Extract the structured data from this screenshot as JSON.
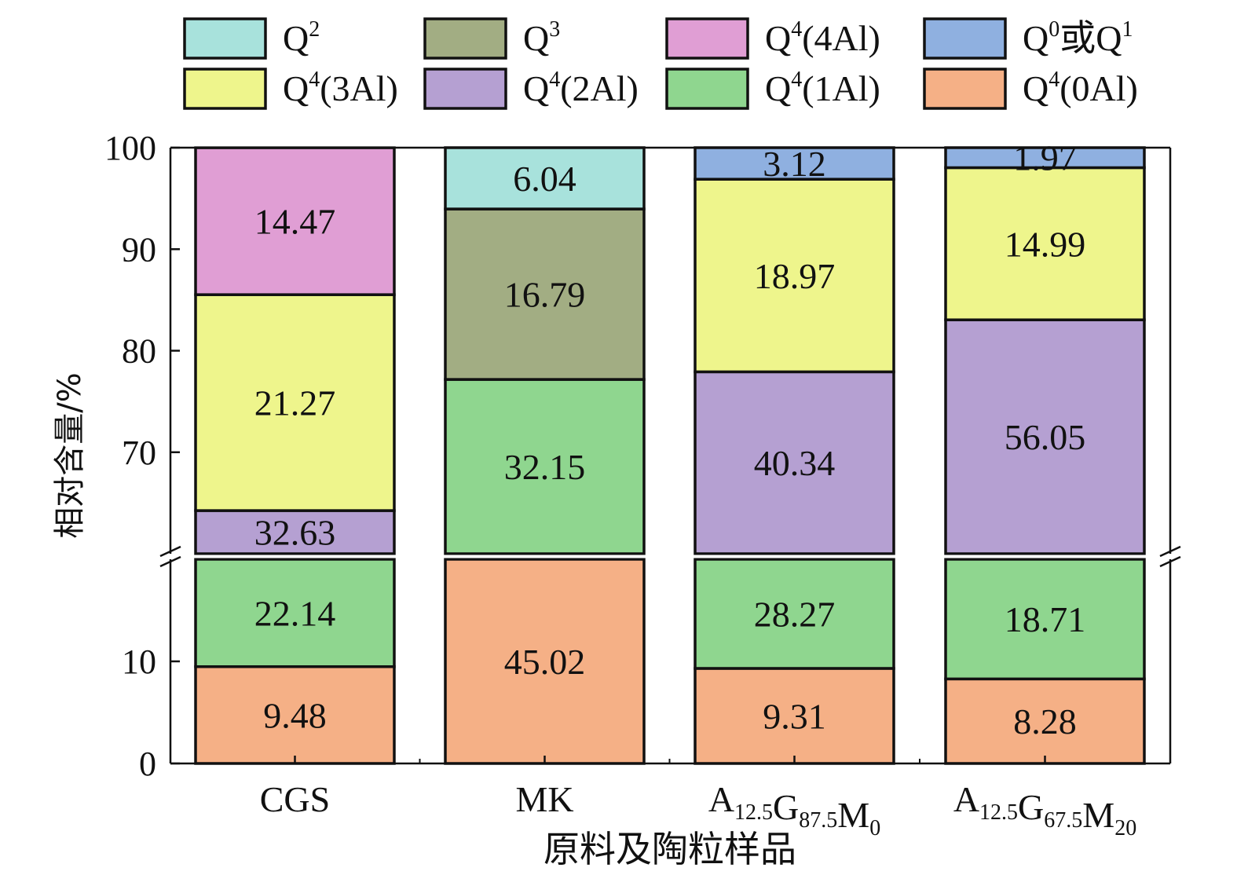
{
  "chart_data": {
    "type": "bar",
    "stacked": true,
    "xlabel": "原料及陶粒样品",
    "ylabel": "相对含量/%",
    "y_break": [
      20,
      60
    ],
    "lower_ylim": [
      0,
      20
    ],
    "upper_ylim": [
      60,
      100
    ],
    "lower_yticks": [
      0,
      10
    ],
    "upper_yticks": [
      70,
      80,
      90,
      100
    ],
    "categories": [
      {
        "base": "CGS",
        "parts": []
      },
      {
        "base": "MK",
        "parts": []
      },
      {
        "base": "",
        "parts": [
          [
            "A",
            "12.5"
          ],
          [
            "G",
            "87.5"
          ],
          [
            "M",
            "0"
          ]
        ]
      },
      {
        "base": "",
        "parts": [
          [
            "A",
            "12.5"
          ],
          [
            "G",
            "67.5"
          ],
          [
            "M",
            "20"
          ]
        ]
      }
    ],
    "series": [
      {
        "key": "q4_0al",
        "main": "Q",
        "sup": "4",
        "tail": "(0Al)",
        "color": "#f5b086",
        "values": [
          9.48,
          45.02,
          9.31,
          8.28
        ]
      },
      {
        "key": "q4_1al",
        "main": "Q",
        "sup": "4",
        "tail": "(1Al)",
        "color": "#8fd68f",
        "values": [
          22.14,
          32.15,
          28.27,
          18.71
        ]
      },
      {
        "key": "q4_2al",
        "main": "Q",
        "sup": "4",
        "tail": "(2Al)",
        "color": "#b5a0d2",
        "values": [
          32.63,
          0,
          40.34,
          56.05
        ]
      },
      {
        "key": "q4_3al",
        "main": "Q",
        "sup": "4",
        "tail": "(3Al)",
        "color": "#eef58c",
        "values": [
          21.27,
          0,
          18.97,
          14.99
        ]
      },
      {
        "key": "q4_4al",
        "main": "Q",
        "sup": "4",
        "tail": "(4Al)",
        "color": "#e09ed4",
        "values": [
          14.47,
          0,
          0,
          0
        ]
      },
      {
        "key": "q3",
        "main": "Q",
        "sup": "3",
        "tail": "",
        "color": "#a2ad83",
        "values": [
          0,
          16.79,
          0,
          0
        ]
      },
      {
        "key": "q2",
        "main": "Q",
        "sup": "2",
        "tail": "",
        "color": "#a8e2dc",
        "values": [
          0,
          6.04,
          0,
          0
        ]
      },
      {
        "key": "q0_q1",
        "main": "Q",
        "sup": "0",
        "tail": "或Q",
        "sup2": "1",
        "color": "#8fb0e0",
        "values": [
          0,
          0,
          3.12,
          1.97
        ]
      }
    ],
    "legend_order": [
      "q2",
      "q3",
      "q4_4al",
      "q0_q1",
      "q4_3al",
      "q4_2al",
      "q4_1al",
      "q4_0al"
    ],
    "segment_labels": [
      [
        "9.48",
        "22.14",
        "32.63",
        "21.27",
        "14.47",
        "",
        "",
        ""
      ],
      [
        "45.02",
        "32.15",
        "",
        "",
        "",
        "16.79",
        "6.04",
        ""
      ],
      [
        "9.31",
        "28.27",
        "40.34",
        "18.97",
        "",
        "",
        "",
        "3.12"
      ],
      [
        "8.28",
        "18.71",
        "56.05",
        "14.99",
        "",
        "",
        "",
        "1.97"
      ]
    ],
    "legend_position": "top",
    "grid": false
  }
}
